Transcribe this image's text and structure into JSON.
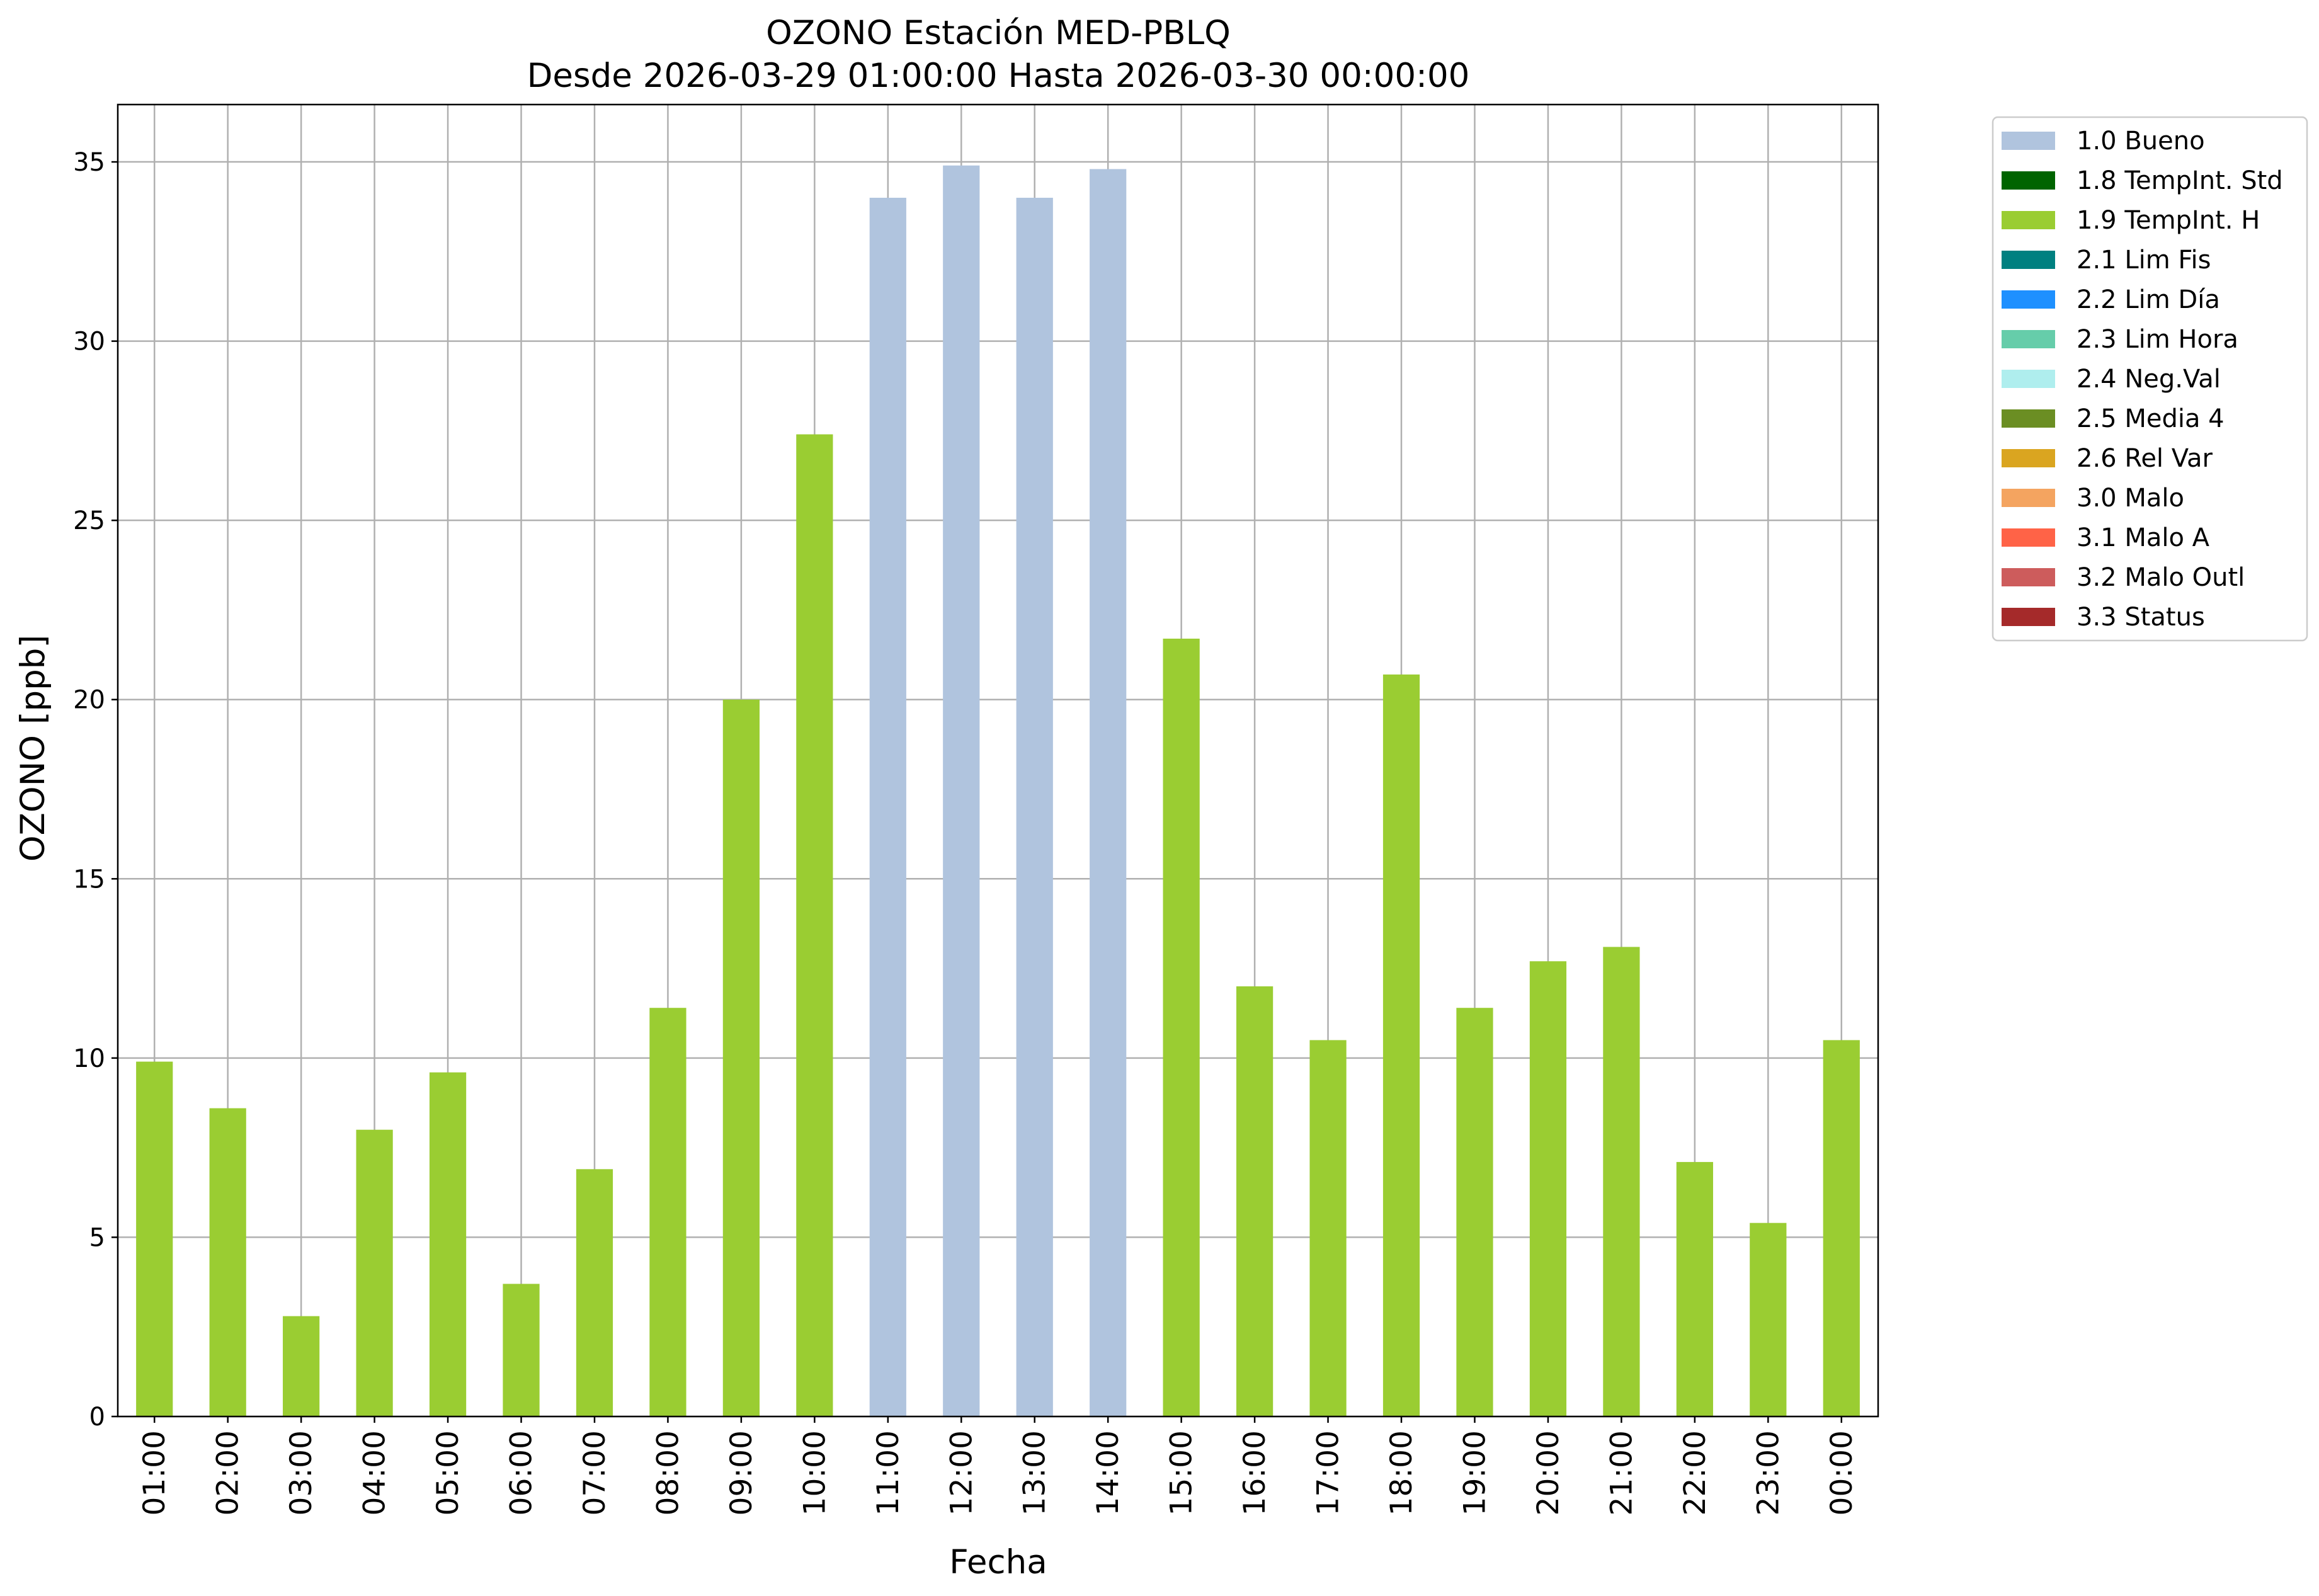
{
  "chart_data": {
    "type": "bar",
    "title": "OZONO Estación MED-PBLQ",
    "subtitle": "Desde 2026-03-29 01:00:00 Hasta 2026-03-30 00:00:00",
    "xlabel": "Fecha",
    "ylabel": "OZONO [ppb]",
    "ylim": [
      0,
      36.6
    ],
    "yticks": [
      0,
      5,
      10,
      15,
      20,
      25,
      30,
      35
    ],
    "grid": true,
    "legend_position": "outside-top-right",
    "categories": [
      "01:00",
      "02:00",
      "03:00",
      "04:00",
      "05:00",
      "06:00",
      "07:00",
      "08:00",
      "09:00",
      "10:00",
      "11:00",
      "12:00",
      "13:00",
      "14:00",
      "15:00",
      "16:00",
      "17:00",
      "18:00",
      "19:00",
      "20:00",
      "21:00",
      "22:00",
      "23:00",
      "00:00"
    ],
    "values": [
      9.9,
      8.6,
      2.8,
      8.0,
      9.6,
      3.7,
      6.9,
      11.4,
      20.0,
      27.4,
      34.0,
      34.9,
      34.0,
      34.8,
      21.7,
      12.0,
      10.5,
      20.7,
      11.4,
      12.7,
      13.1,
      7.1,
      5.4,
      10.5
    ],
    "flags": [
      "1.9",
      "1.9",
      "1.9",
      "1.9",
      "1.9",
      "1.9",
      "1.9",
      "1.9",
      "1.9",
      "1.9",
      "1.0",
      "1.0",
      "1.0",
      "1.0",
      "1.9",
      "1.9",
      "1.9",
      "1.9",
      "1.9",
      "1.9",
      "1.9",
      "1.9",
      "1.9",
      "1.9"
    ],
    "legend": [
      {
        "code": "1.0",
        "label": "1.0 Bueno",
        "color": "#b0c4de"
      },
      {
        "code": "1.8",
        "label": "1.8 TempInt. Std",
        "color": "#006400"
      },
      {
        "code": "1.9",
        "label": "1.9 TempInt. H",
        "color": "#9acd32"
      },
      {
        "code": "2.1",
        "label": "2.1 Lim Fis",
        "color": "#008080"
      },
      {
        "code": "2.2",
        "label": "2.2 Lim Día",
        "color": "#1e90ff"
      },
      {
        "code": "2.3",
        "label": "2.3 Lim Hora",
        "color": "#66cdaa"
      },
      {
        "code": "2.4",
        "label": "2.4 Neg.Val",
        "color": "#afeeee"
      },
      {
        "code": "2.5",
        "label": "2.5 Media 4",
        "color": "#6b8e23"
      },
      {
        "code": "2.6",
        "label": "2.6 Rel Var",
        "color": "#daa520"
      },
      {
        "code": "3.0",
        "label": "3.0 Malo",
        "color": "#f4a460"
      },
      {
        "code": "3.1",
        "label": "3.1 Malo A",
        "color": "#ff6347"
      },
      {
        "code": "3.2",
        "label": "3.2 Malo Outl",
        "color": "#cd5c5c"
      },
      {
        "code": "3.3",
        "label": "3.3 Status",
        "color": "#a52a2a"
      }
    ]
  }
}
